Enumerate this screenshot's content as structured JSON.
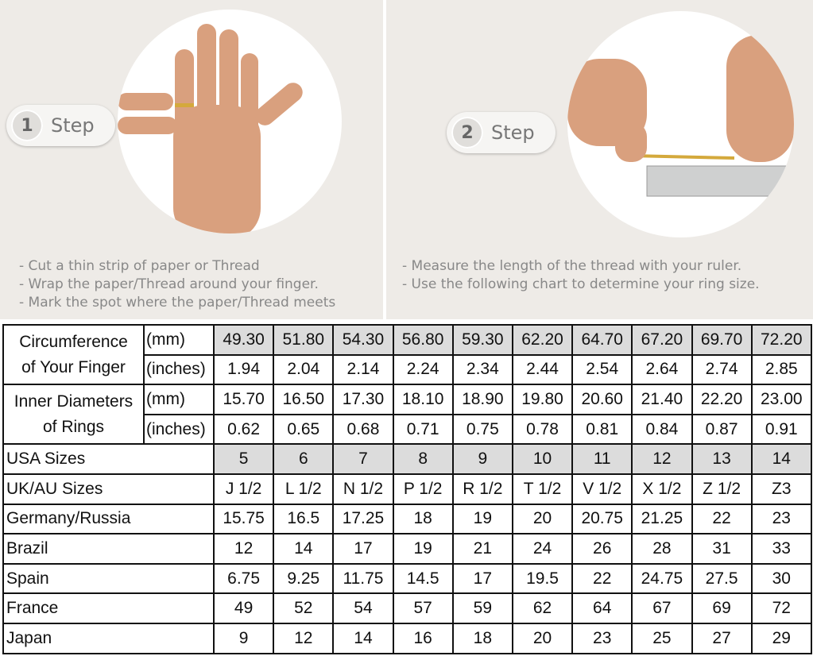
{
  "step1": {
    "number": "1",
    "label": "Step",
    "bullets": [
      "- Cut a thin strip of paper or Thread",
      "- Wrap the paper/Thread around your finger.",
      "- Mark the spot where the paper/Thread meets"
    ]
  },
  "step2": {
    "number": "2",
    "label": "Step",
    "bullets": [
      "- Measure the length of the thread with your ruler.",
      "- Use the following chart to determine your ring size."
    ]
  },
  "table": {
    "circumference": {
      "label_line1": "Circumference",
      "label_line2": "of Your Finger",
      "mm_unit": "(mm)",
      "in_unit": "(inches)",
      "mm": [
        "49.30",
        "51.80",
        "54.30",
        "56.80",
        "59.30",
        "62.20",
        "64.70",
        "67.20",
        "69.70",
        "72.20"
      ],
      "inches": [
        "1.94",
        "2.04",
        "2.14",
        "2.24",
        "2.34",
        "2.44",
        "2.54",
        "2.64",
        "2.74",
        "2.85"
      ]
    },
    "inner_diameter": {
      "label_line1": "Inner Diameters",
      "label_line2": "of Rings",
      "mm_unit": "(mm)",
      "in_unit": "(inches)",
      "mm": [
        "15.70",
        "16.50",
        "17.30",
        "18.10",
        "18.90",
        "19.80",
        "20.60",
        "21.40",
        "22.20",
        "23.00"
      ],
      "inches": [
        "0.62",
        "0.65",
        "0.68",
        "0.71",
        "0.75",
        "0.78",
        "0.81",
        "0.84",
        "0.87",
        "0.91"
      ]
    },
    "rows": [
      {
        "label": "USA Sizes",
        "values": [
          "5",
          "6",
          "7",
          "8",
          "9",
          "10",
          "11",
          "12",
          "13",
          "14"
        ]
      },
      {
        "label": "UK/AU Sizes",
        "values": [
          "J 1/2",
          "L 1/2",
          "N 1/2",
          "P 1/2",
          "R 1/2",
          "T 1/2",
          "V 1/2",
          "X 1/2",
          "Z 1/2",
          "Z3"
        ]
      },
      {
        "label": "Germany/Russia",
        "values": [
          "15.75",
          "16.5",
          "17.25",
          "18",
          "19",
          "20",
          "20.75",
          "21.25",
          "22",
          "23"
        ]
      },
      {
        "label": "Brazil",
        "values": [
          "12",
          "14",
          "17",
          "19",
          "21",
          "24",
          "26",
          "28",
          "31",
          "33"
        ]
      },
      {
        "label": "Spain",
        "values": [
          "6.75",
          "9.25",
          "11.75",
          "14.5",
          "17",
          "19.5",
          "22",
          "24.75",
          "27.5",
          "30"
        ]
      },
      {
        "label": "France",
        "values": [
          "49",
          "52",
          "54",
          "57",
          "59",
          "62",
          "64",
          "67",
          "69",
          "72"
        ]
      },
      {
        "label": "Japan",
        "values": [
          "9",
          "12",
          "14",
          "16",
          "18",
          "20",
          "23",
          "25",
          "27",
          "29"
        ]
      }
    ]
  },
  "colors": {
    "highlight": "#dcdcdc",
    "panel": "#eeebe7",
    "skin": "#d9a07e"
  }
}
